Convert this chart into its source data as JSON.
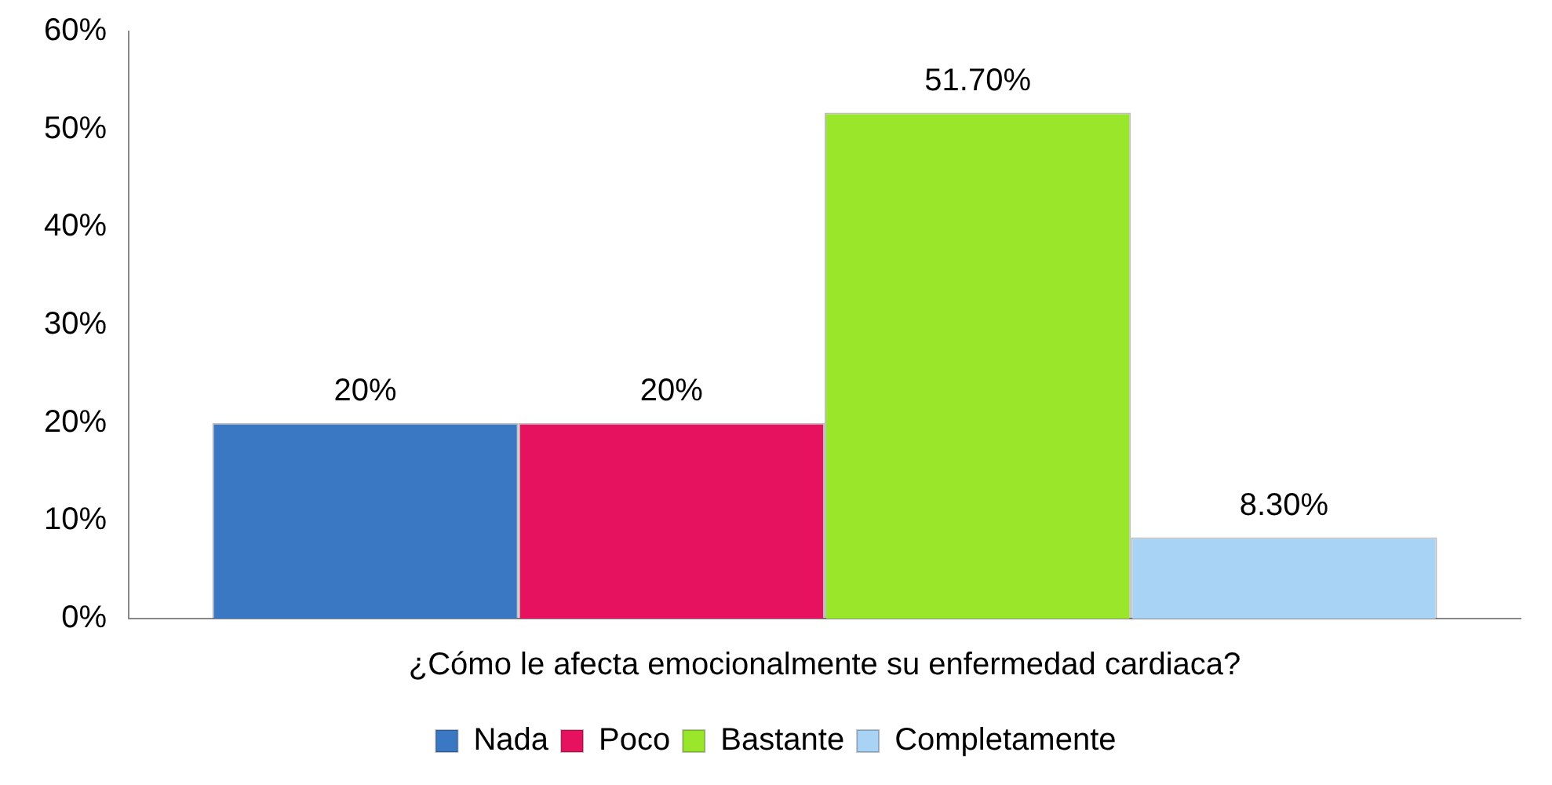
{
  "chart_data": {
    "type": "bar",
    "categories": [
      "¿Cómo le afecta emocionalmente su enfermedad cardiaca?"
    ],
    "series": [
      {
        "name": "Nada",
        "color": "#3a78c3",
        "values": [
          20
        ],
        "value_labels": [
          "20%"
        ]
      },
      {
        "name": "Poco",
        "color": "#e6125f",
        "values": [
          20
        ],
        "value_labels": [
          "20%"
        ]
      },
      {
        "name": "Bastante",
        "color": "#99e62a",
        "values": [
          51.7
        ],
        "value_labels": [
          "51.70%"
        ]
      },
      {
        "name": "Completamente",
        "color": "#a9d3f5",
        "values": [
          8.3
        ],
        "value_labels": [
          "8.30%"
        ]
      }
    ],
    "ylim": [
      0,
      60
    ],
    "yticks": [
      {
        "value": 0,
        "label": "0%"
      },
      {
        "value": 10,
        "label": "10%"
      },
      {
        "value": 20,
        "label": "20%"
      },
      {
        "value": 30,
        "label": "30%"
      },
      {
        "value": 40,
        "label": "40%"
      },
      {
        "value": 50,
        "label": "50%"
      },
      {
        "value": 60,
        "label": "60%"
      }
    ],
    "grid": false,
    "legend": "bottom"
  }
}
